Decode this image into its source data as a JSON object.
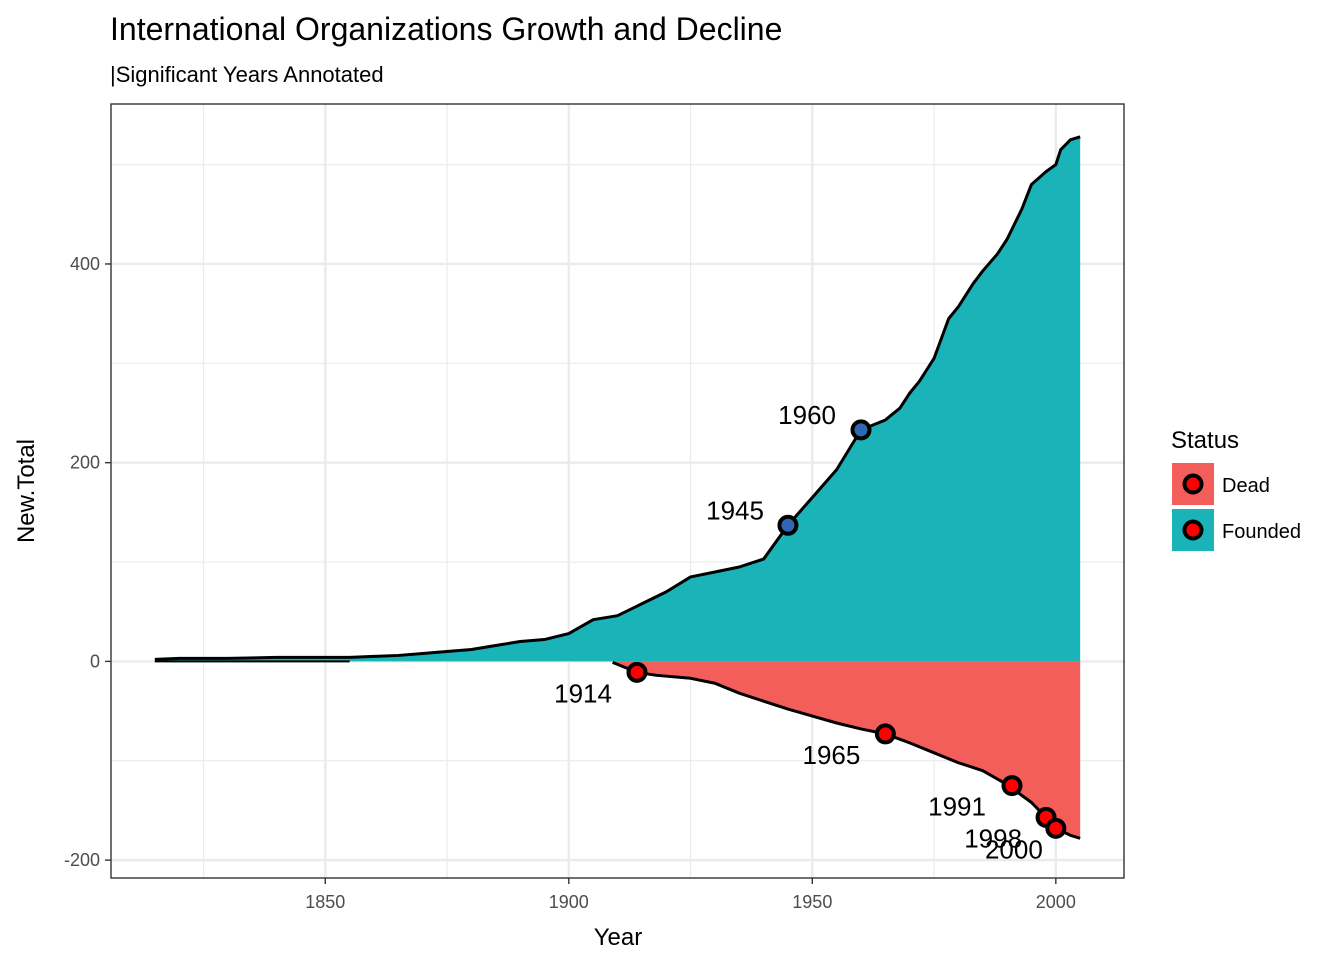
{
  "chart_data": {
    "type": "area",
    "title": "International Organizations Growth and Decline",
    "subtitle": "|Significant Years Annotated",
    "xlabel": "Year",
    "ylabel": "New.Total",
    "xlim": [
      1806,
      2014
    ],
    "ylim": [
      -218,
      561
    ],
    "x_ticks": [
      1850,
      1900,
      1950,
      2000
    ],
    "y_ticks": [
      -200,
      0,
      200,
      400
    ],
    "x_tick_labels": [
      "1850",
      "1900",
      "1950",
      "2000"
    ],
    "y_tick_labels": [
      "-200",
      "0",
      "200",
      "400"
    ],
    "grid": true,
    "legend": {
      "title": "Status",
      "position": "right",
      "entries": [
        {
          "label": "Dead",
          "color": "#f35e5a"
        },
        {
          "label": "Founded",
          "color": "#1ab4b8"
        }
      ]
    },
    "series": [
      {
        "name": "Founded",
        "color": "#1ab4b8",
        "x": [
          1815,
          1820,
          1830,
          1840,
          1850,
          1855,
          1860,
          1865,
          1870,
          1875,
          1880,
          1885,
          1890,
          1895,
          1900,
          1905,
          1910,
          1915,
          1920,
          1925,
          1930,
          1935,
          1940,
          1945,
          1950,
          1955,
          1960,
          1965,
          1968,
          1970,
          1972,
          1975,
          1978,
          1980,
          1983,
          1985,
          1988,
          1990,
          1993,
          1995,
          1998,
          2000,
          2001,
          2003,
          2005
        ],
        "y": [
          2,
          3,
          3,
          4,
          4,
          4,
          5,
          6,
          8,
          10,
          12,
          16,
          20,
          22,
          28,
          42,
          46,
          58,
          70,
          85,
          90,
          95,
          103,
          137,
          165,
          193,
          233,
          243,
          255,
          270,
          282,
          305,
          345,
          357,
          380,
          393,
          410,
          425,
          455,
          480,
          493,
          500,
          515,
          525,
          528
        ]
      },
      {
        "name": "Dead",
        "color": "#f35e5a",
        "x": [
          1909,
          1914,
          1918,
          1925,
          1930,
          1935,
          1940,
          1945,
          1950,
          1955,
          1960,
          1965,
          1970,
          1975,
          1980,
          1985,
          1990,
          1995,
          1998,
          2000,
          2003,
          2005
        ],
        "y": [
          -1,
          -11,
          -14,
          -17,
          -22,
          -32,
          -40,
          -48,
          -55,
          -62,
          -68,
          -73,
          -82,
          -92,
          -102,
          -110,
          -124,
          -142,
          -157,
          -168,
          -175,
          -178
        ]
      }
    ],
    "annotations": [
      {
        "label": "1914",
        "x": 1914,
        "y": -11,
        "status": "Dead",
        "color": "#ff0000"
      },
      {
        "label": "1945",
        "x": 1945,
        "y": 137,
        "status": "Founded",
        "color": "#2e68b0"
      },
      {
        "label": "1960",
        "x": 1960,
        "y": 233,
        "status": "Founded",
        "color": "#2e68b0"
      },
      {
        "label": "1965",
        "x": 1965,
        "y": -73,
        "status": "Dead",
        "color": "#ff0000"
      },
      {
        "label": "1991",
        "x": 1991,
        "y": -125,
        "status": "Dead",
        "color": "#ff0000"
      },
      {
        "label": "1998",
        "x": 1998,
        "y": -157,
        "status": "Dead",
        "color": "#ff0000"
      },
      {
        "label": "2000",
        "x": 2000,
        "y": -168,
        "status": "Dead",
        "color": "#ff0000"
      }
    ]
  }
}
